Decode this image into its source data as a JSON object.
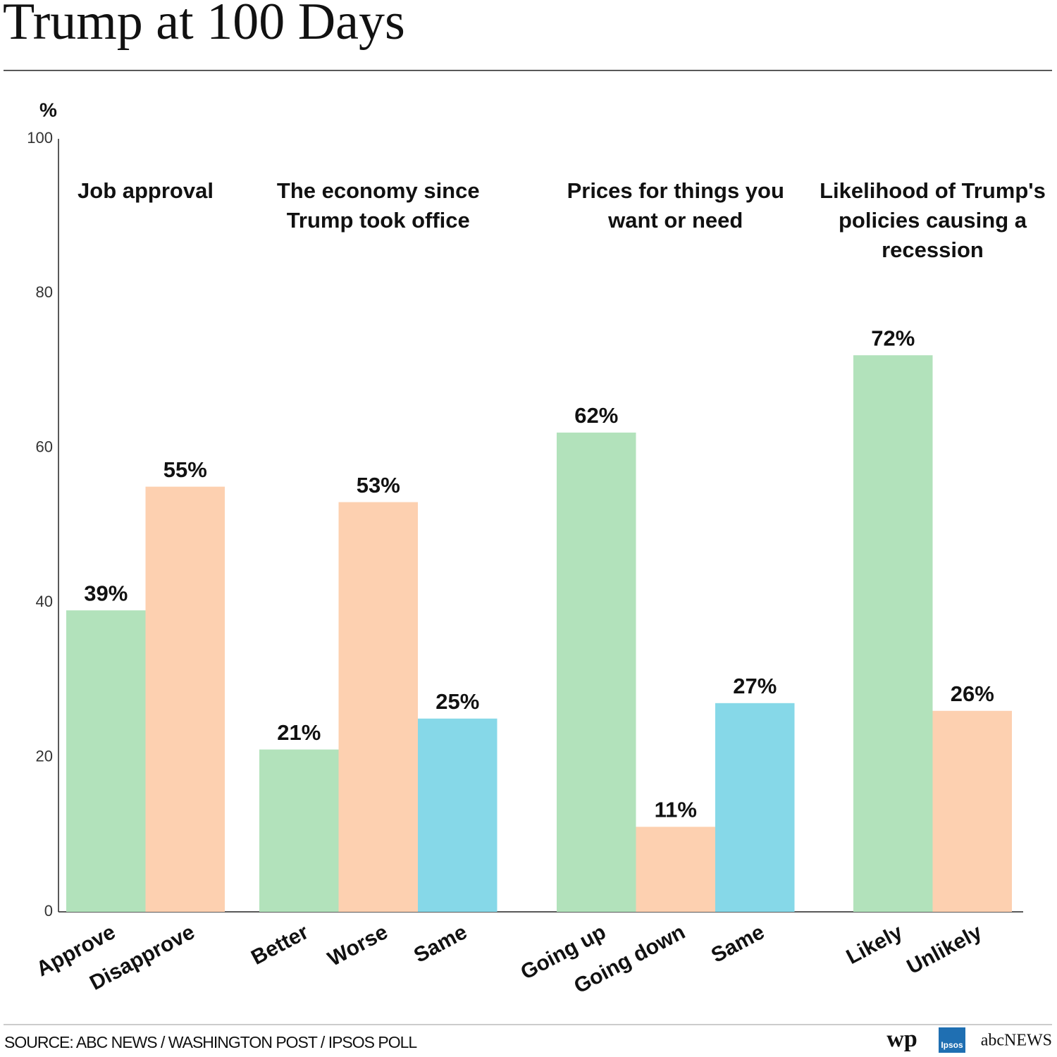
{
  "chart_data": {
    "type": "bar",
    "title": "Trump at 100 Days",
    "y_label": "%",
    "ylim": [
      0,
      100
    ],
    "yticks": [
      0,
      20,
      40,
      60,
      80,
      100
    ],
    "grid": false,
    "groups": [
      {
        "title": "Job approval",
        "categories": [
          "Approve",
          "Disapprove"
        ],
        "values": [
          39,
          55
        ],
        "value_labels": [
          "39%",
          "55%"
        ],
        "colors": [
          "#b2e2bb",
          "#fdd0b0"
        ]
      },
      {
        "title": "The economy since Trump took office",
        "categories": [
          "Better",
          "Worse",
          "Same"
        ],
        "values": [
          21,
          53,
          25
        ],
        "value_labels": [
          "21%",
          "53%",
          "25%"
        ],
        "colors": [
          "#b2e2bb",
          "#fdd0b0",
          "#86d8e8"
        ]
      },
      {
        "title": "Prices for things you want or need",
        "categories": [
          "Going up",
          "Going down",
          "Same"
        ],
        "values": [
          62,
          11,
          27
        ],
        "value_labels": [
          "62%",
          "11%",
          "27%"
        ],
        "colors": [
          "#b2e2bb",
          "#fdd0b0",
          "#86d8e8"
        ]
      },
      {
        "title": "Likelihood of Trump's policies causing a recession",
        "categories": [
          "Likely",
          "Unlikely"
        ],
        "values": [
          72,
          26
        ],
        "value_labels": [
          "72%",
          "26%"
        ],
        "colors": [
          "#b2e2bb",
          "#fdd0b0"
        ]
      }
    ],
    "source": "SOURCE: ABC NEWS / WASHINGTON POST / IPSOS POLL",
    "logos": [
      "wp",
      "Ipsos",
      "abcNEWS"
    ]
  }
}
